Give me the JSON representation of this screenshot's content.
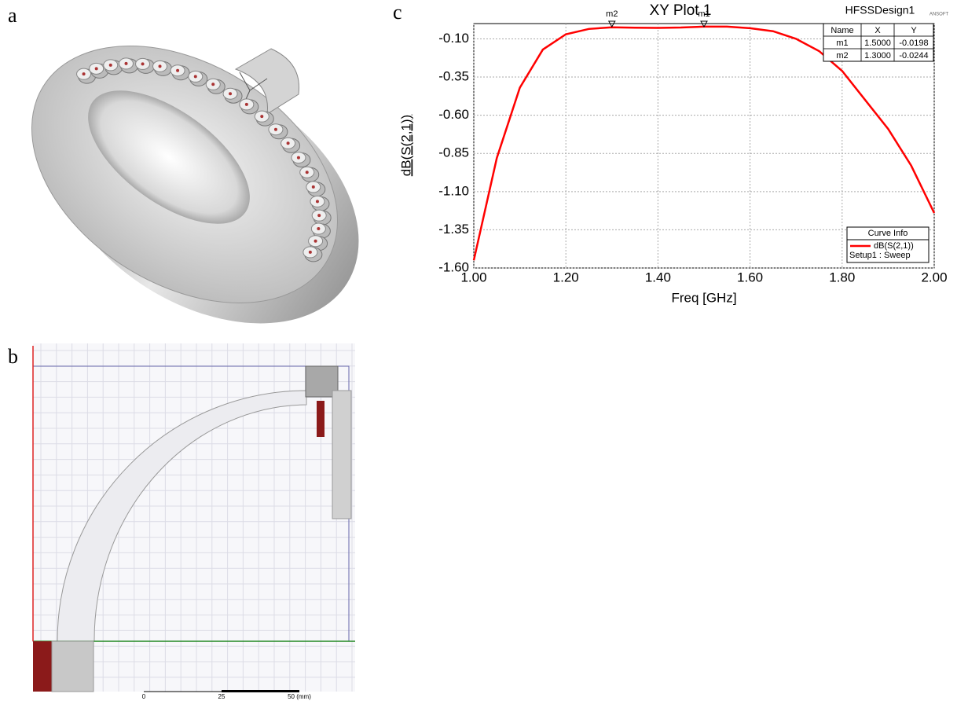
{
  "panel_labels": [
    "a",
    "b",
    "c"
  ],
  "panel_b": {
    "scale_labels": [
      "0",
      "25",
      "50 (mm)"
    ]
  },
  "chart_data": {
    "type": "line",
    "title": "XY Plot 1",
    "design": "HFSSDesign1",
    "logo": "ANSOFT",
    "x_label": "Freq [GHz]",
    "y_label": "dB(S(2,1))",
    "x": [
      1.0,
      1.05,
      1.1,
      1.15,
      1.2,
      1.25,
      1.3,
      1.35,
      1.4,
      1.45,
      1.5,
      1.55,
      1.6,
      1.65,
      1.7,
      1.75,
      1.8,
      1.85,
      1.9,
      1.95,
      2.0
    ],
    "series": [
      {
        "name": "dB(S(2,1))",
        "color": "#ff0000",
        "values": [
          -1.55,
          -0.88,
          -0.42,
          -0.17,
          -0.07,
          -0.035,
          -0.0244,
          -0.027,
          -0.028,
          -0.026,
          -0.0198,
          -0.02,
          -0.03,
          -0.05,
          -0.1,
          -0.18,
          -0.31,
          -0.5,
          -0.69,
          -0.93,
          -1.24
        ]
      }
    ],
    "legend_title": "Curve Info",
    "legend_note": "Setup1 : Sweep",
    "xlim": [
      1.0,
      2.0
    ],
    "xticks": [
      {
        "value": 1.0,
        "label": "1.00"
      },
      {
        "value": 1.2,
        "label": "1.20"
      },
      {
        "value": 1.4,
        "label": "1.40"
      },
      {
        "value": 1.6,
        "label": "1.60"
      },
      {
        "value": 1.8,
        "label": "1.80"
      },
      {
        "value": 2.0,
        "label": "2.00"
      }
    ],
    "ylim": [
      -1.6,
      0.0
    ],
    "yticks": [
      {
        "value": -1.6,
        "label": "-1.60"
      },
      {
        "value": -1.35,
        "label": "-1.35"
      },
      {
        "value": -1.1,
        "label": "-1.10"
      },
      {
        "value": -0.85,
        "label": "-0.85"
      },
      {
        "value": -0.6,
        "label": "-0.60"
      },
      {
        "value": -0.35,
        "label": "-0.35"
      },
      {
        "value": -0.1,
        "label": "-0.10"
      }
    ],
    "grid": true,
    "marker_table_header": [
      "Name",
      "X",
      "Y"
    ],
    "markers": [
      {
        "name": "m1",
        "x": {
          "value": 1.5,
          "label": "1.5000"
        },
        "y": -0.0198
      },
      {
        "name": "m2",
        "x": {
          "value": 1.3,
          "label": "1.3000"
        },
        "y": -0.0244
      }
    ]
  }
}
